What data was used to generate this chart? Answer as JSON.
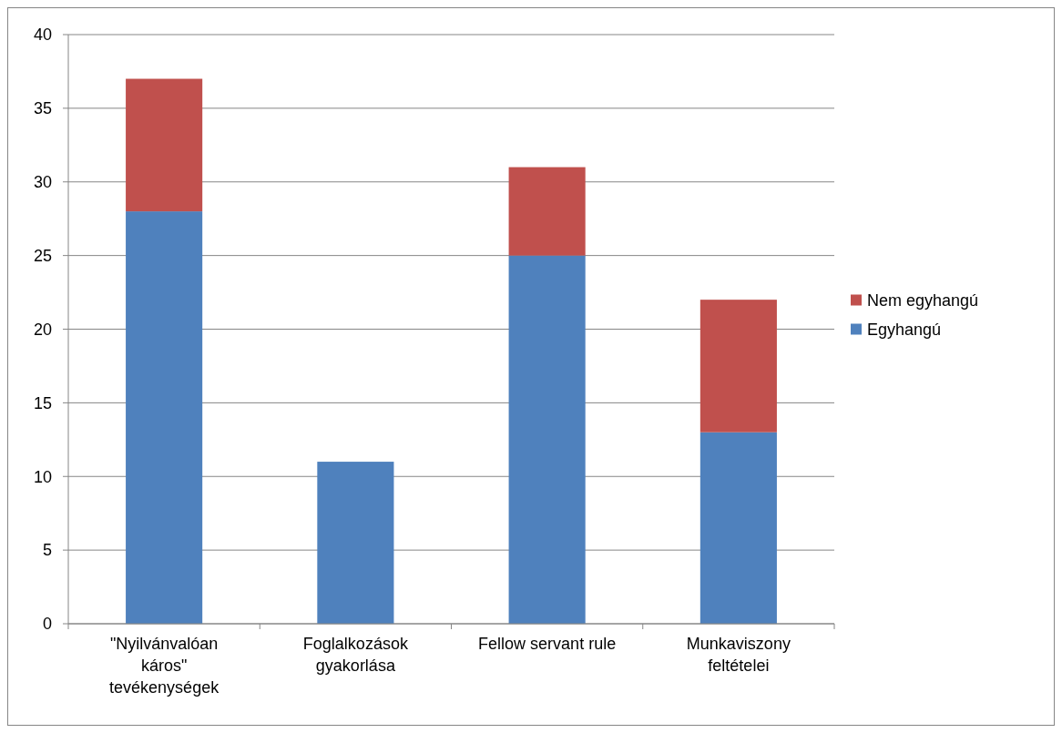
{
  "chart_data": {
    "type": "bar",
    "stacked": true,
    "categories": [
      "\"Nyilvánvalóan káros\" tevékenységek",
      "Foglalkozások gyakorlása",
      "Fellow servant rule",
      "Munkaviszony feltételei"
    ],
    "series": [
      {
        "name": "Egyhangú",
        "color": "#4f81bd",
        "values": [
          28,
          11,
          25,
          13
        ]
      },
      {
        "name": "Nem egyhangú",
        "color": "#c0504d",
        "values": [
          9,
          0,
          6,
          9
        ]
      }
    ],
    "ylim": [
      0,
      40
    ],
    "yticks": [
      0,
      5,
      10,
      15,
      20,
      25,
      30,
      35,
      40
    ],
    "grid": "y",
    "legend": "right"
  }
}
